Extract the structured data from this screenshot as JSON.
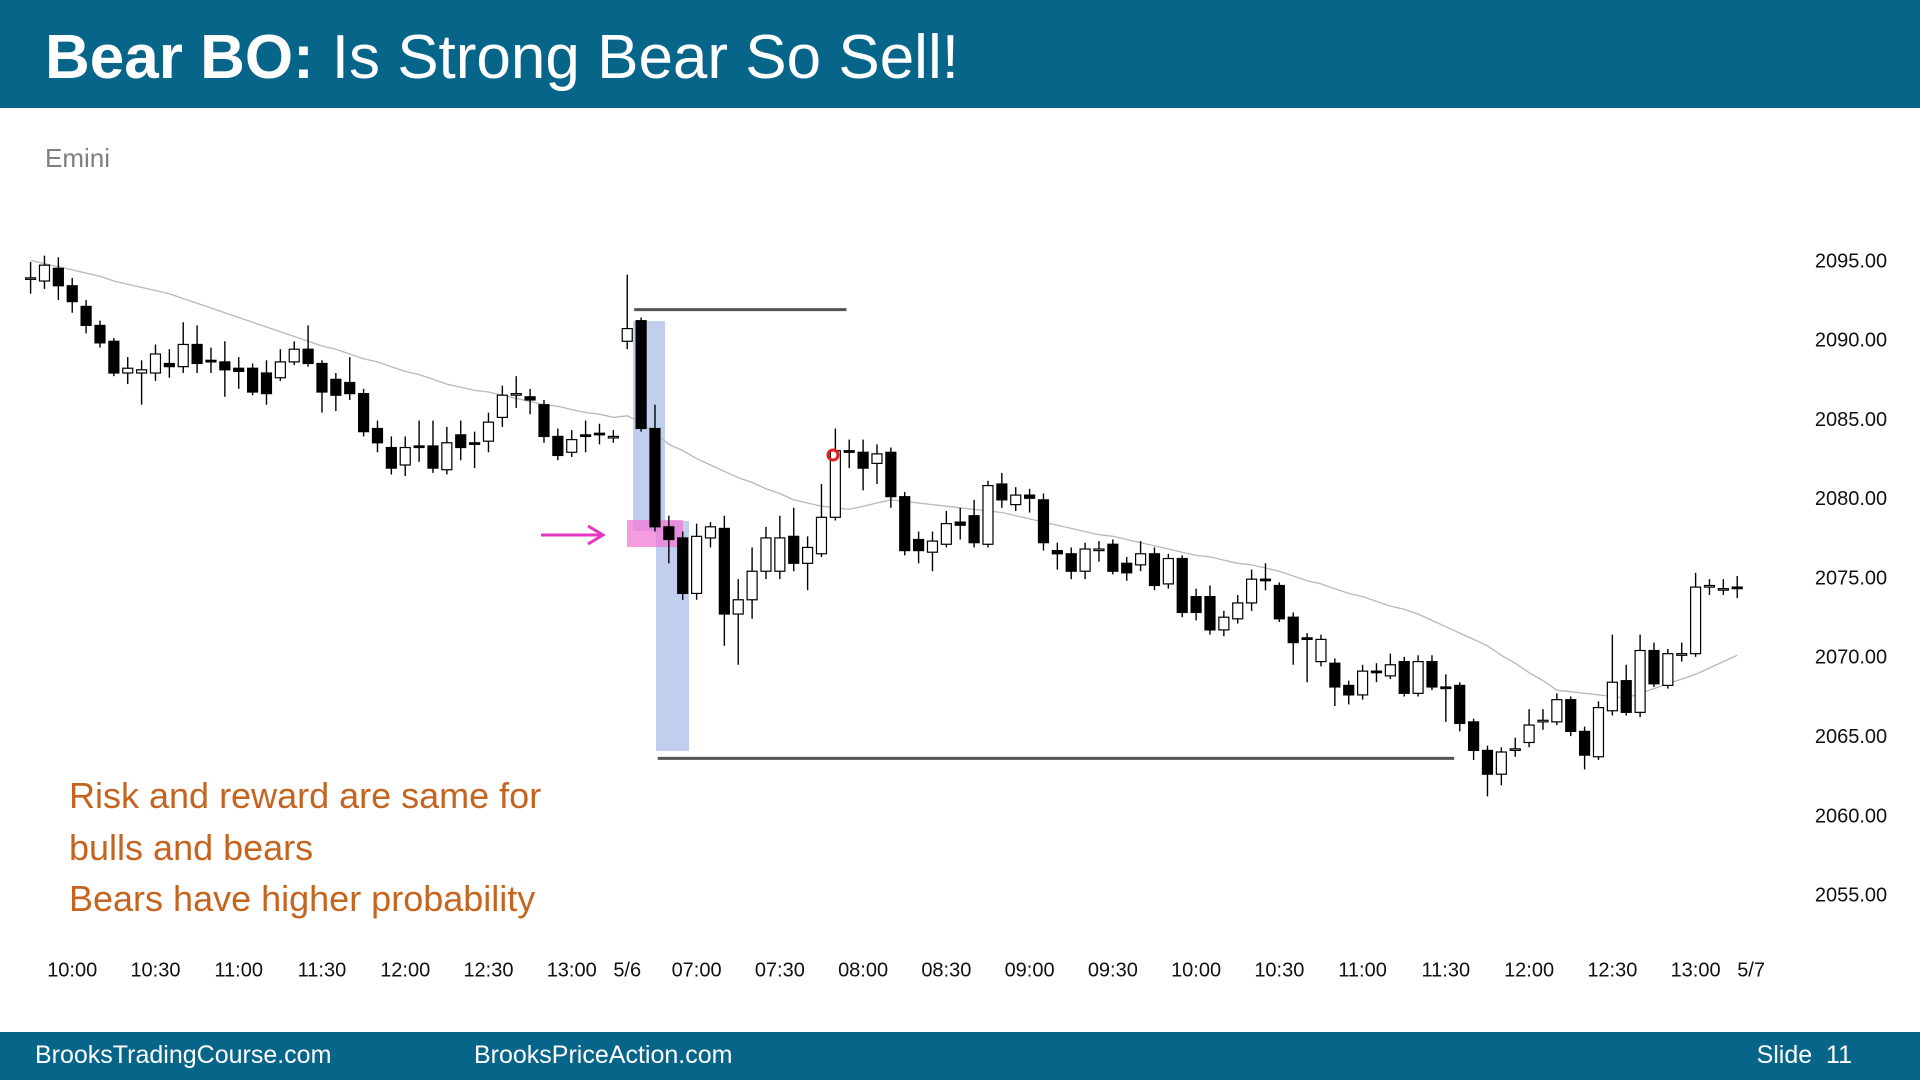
{
  "header": {
    "title_bold": "Bear BO:",
    "title_rest": "Is Strong Bear So Sell!"
  },
  "chart_data": {
    "type": "candlestick",
    "subtitle": "Emini",
    "categories": [
      null,
      null,
      null,
      "10:00",
      null,
      null,
      null,
      null,
      null,
      "10:30",
      null,
      null,
      null,
      null,
      null,
      "11:00",
      null,
      null,
      null,
      null,
      null,
      "11:30",
      null,
      null,
      null,
      null,
      null,
      "12:00",
      null,
      null,
      null,
      null,
      null,
      "12:30",
      null,
      null,
      null,
      null,
      null,
      "13:00",
      null,
      null,
      null,
      "5/6",
      null,
      null,
      null,
      null,
      "07:00",
      null,
      null,
      null,
      null,
      null,
      "07:30",
      null,
      null,
      null,
      null,
      null,
      "08:00",
      null,
      null,
      null,
      null,
      null,
      "08:30",
      null,
      null,
      null,
      null,
      null,
      "09:00",
      null,
      null,
      null,
      null,
      null,
      "09:30",
      null,
      null,
      null,
      null,
      null,
      "10:00",
      null,
      null,
      null,
      null,
      null,
      "10:30",
      null,
      null,
      null,
      null,
      null,
      "11:00",
      null,
      null,
      null,
      null,
      null,
      "11:30",
      null,
      null,
      null,
      null,
      null,
      "12:00",
      null,
      null,
      null,
      null,
      null,
      "12:30",
      null,
      null,
      null,
      null,
      null,
      "13:00",
      null,
      null,
      null,
      "5/7"
    ],
    "open": [
      2094,
      2093.8,
      2094.6,
      2093.5,
      2092.2,
      2091,
      2090,
      2088,
      2088,
      2088,
      2088.6,
      2088.4,
      2089.8,
      2088.8,
      2088.7,
      2088.3,
      2088.3,
      2088,
      2087.7,
      2088.7,
      2089.5,
      2088.6,
      2087.6,
      2087.4,
      2086.7,
      2084.5,
      2083.3,
      2082.2,
      2083.4,
      2083.4,
      2081.9,
      2084.1,
      2083.6,
      2083.7,
      2085.2,
      2086.6,
      2086.5,
      2086,
      2084,
      2083,
      2084.1,
      2084.2,
      2084,
      2090,
      2091.3,
      2084.5,
      2078.3,
      2077.6,
      2074.1,
      2077.6,
      2078.2,
      2072.8,
      2073.7,
      2075.5,
      2075.5,
      2077.7,
      2076,
      2076.6,
      2078.9,
      2083.1,
      2083,
      2082.3,
      2083,
      2080.2,
      2077.5,
      2076.7,
      2077.2,
      2078.6,
      2079,
      2077.2,
      2081,
      2079.7,
      2080.3,
      2080,
      2076.8,
      2076.6,
      2075.5,
      2076.8,
      2077.2,
      2076,
      2075.9,
      2076.6,
      2074.7,
      2076.3,
      2073.9,
      2073.9,
      2071.8,
      2072.5,
      2073.5,
      2075,
      2074.6,
      2072.6,
      2071.3,
      2069.8,
      2069.7,
      2068.3,
      2067.7,
      2069.2,
      2068.9,
      2069.8,
      2067.8,
      2069.8,
      2068.2,
      2068.3,
      2066,
      2064.2,
      2062.7,
      2064.2,
      2064.7,
      2066,
      2066,
      2067.4,
      2065.4,
      2063.8,
      2066.7,
      2068.6,
      2066.6,
      2070.5,
      2068.3,
      2070.2,
      2070.3,
      2074.5,
      2074.4,
      2074.5,
      null
    ],
    "high": [
      2095,
      2095.4,
      2095.3,
      2094,
      2092.6,
      2091.3,
      2090.2,
      2089,
      2088.8,
      2089.8,
      2089.5,
      2091.2,
      2091,
      2089.6,
      2090,
      2089,
      2088.6,
      2088.8,
      2089.5,
      2090,
      2091,
      2088.8,
      2088,
      2089,
      2087,
      2085,
      2084,
      2084,
      2085,
      2085,
      2084.6,
      2085,
      2084.3,
      2085.5,
      2087.2,
      2087.8,
      2087,
      2086.3,
      2084.5,
      2084.4,
      2085,
      2084.8,
      2084.4,
      2094.2,
      2091.5,
      2086,
      2079,
      2078,
      2078.5,
      2078.6,
      2079,
      2075,
      2077,
      2078.3,
      2079,
      2079.5,
      2077.7,
      2081,
      2084.5,
      2083.8,
      2083.8,
      2083.5,
      2083.3,
      2080.5,
      2078,
      2078,
      2079.3,
      2079.5,
      2080,
      2081.2,
      2081.7,
      2080.8,
      2080.7,
      2080.4,
      2077.3,
      2077,
      2077.3,
      2077.4,
      2077.5,
      2076.4,
      2077.4,
      2077,
      2076.6,
      2076.5,
      2074.4,
      2074.6,
      2073,
      2074,
      2075.6,
      2076,
      2074.8,
      2072.9,
      2071.6,
      2071.5,
      2070,
      2068.6,
      2069.6,
      2069.7,
      2070.3,
      2070.1,
      2070.2,
      2070.2,
      2069,
      2068.5,
      2066.2,
      2064.5,
      2064.4,
      2065,
      2066.8,
      2066.8,
      2067.8,
      2067.6,
      2065.7,
      2067.3,
      2071.5,
      2069.6,
      2071.5,
      2071,
      2070.6,
      2071,
      2075.4,
      2075,
      2075,
      2075.2,
      null
    ],
    "low": [
      2093,
      2093.3,
      2092.6,
      2091.8,
      2090.5,
      2089.6,
      2087.8,
      2087.3,
      2086,
      2087.5,
      2087.7,
      2088,
      2088,
      2088,
      2086.5,
      2087,
      2086.6,
      2086,
      2087.5,
      2088.5,
      2088.4,
      2085.5,
      2085.6,
      2086.3,
      2084,
      2083,
      2081.6,
      2081.5,
      2082.4,
      2081.7,
      2081.6,
      2082.5,
      2082,
      2083,
      2084.6,
      2085.8,
      2085.4,
      2083.6,
      2082.5,
      2082.7,
      2083,
      2083.5,
      2083.6,
      2089.5,
      2084.3,
      2078,
      2076,
      2073.7,
      2073.7,
      2077,
      2070.8,
      2069.6,
      2072.5,
      2075,
      2075,
      2075.5,
      2074.3,
      2076.4,
      2078.7,
      2082,
      2080.6,
      2081,
      2079.5,
      2076.5,
      2076,
      2075.5,
      2077,
      2077.5,
      2077,
      2077,
      2079.5,
      2079.3,
      2079.2,
      2076.8,
      2075.6,
      2075,
      2075,
      2076.1,
      2075.3,
      2074.9,
      2075.5,
      2074.3,
      2074.4,
      2072.6,
      2072.4,
      2071.5,
      2071.4,
      2072.2,
      2073,
      2074.3,
      2072.3,
      2069.6,
      2068.5,
      2069.5,
      2067,
      2067.1,
      2067.4,
      2068.5,
      2068.7,
      2067.6,
      2067.6,
      2068,
      2066,
      2065.4,
      2063.6,
      2061.3,
      2062,
      2063.8,
      2064.4,
      2065.5,
      2065.8,
      2065.1,
      2063,
      2063.6,
      2066.4,
      2066.4,
      2066.3,
      2068.2,
      2068.1,
      2069.8,
      2070.1,
      2074,
      2074,
      2073.8,
      null
    ],
    "close": [
      2094,
      2094.8,
      2093.5,
      2092.5,
      2091,
      2089.9,
      2088,
      2088.3,
      2088.2,
      2089.2,
      2088.4,
      2089.8,
      2088.6,
      2088.7,
      2088.2,
      2088.1,
      2086.8,
      2086.7,
      2088.7,
      2089.5,
      2088.6,
      2086.8,
      2086.6,
      2086.7,
      2084.3,
      2083.6,
      2082,
      2083.3,
      2083.3,
      2082,
      2083.6,
      2083.3,
      2083.5,
      2084.9,
      2086.6,
      2086.7,
      2086.3,
      2084,
      2082.8,
      2083.8,
      2084,
      2084.1,
      2084,
      2090.8,
      2084.5,
      2078.3,
      2077.5,
      2074.1,
      2077.7,
      2078.3,
      2072.8,
      2073.7,
      2075.5,
      2077.6,
      2077.6,
      2076,
      2077,
      2078.9,
      2083.1,
      2083,
      2082,
      2082.9,
      2080.2,
      2076.8,
      2076.8,
      2077.4,
      2078.5,
      2078.4,
      2077.3,
      2080.9,
      2080,
      2080.3,
      2080.1,
      2077.3,
      2076.6,
      2075.5,
      2076.9,
      2076.9,
      2075.5,
      2075.4,
      2076.6,
      2074.6,
      2076.3,
      2072.9,
      2072.9,
      2071.8,
      2072.6,
      2073.5,
      2075,
      2074.9,
      2072.5,
      2071,
      2071.2,
      2071.2,
      2068.2,
      2067.7,
      2069.2,
      2069.1,
      2069.6,
      2067.8,
      2069.8,
      2068.2,
      2068.1,
      2065.9,
      2064.2,
      2062.7,
      2064.1,
      2064.3,
      2065.8,
      2066.1,
      2067.4,
      2065.4,
      2063.9,
      2066.9,
      2068.5,
      2066.6,
      2070.5,
      2068.4,
      2070.3,
      2070.3,
      2074.5,
      2074.6,
      2074.4,
      2074.4,
      null
    ],
    "moving_average": [
      2095.1,
      2094.9,
      2094.7,
      2094.5,
      2094.3,
      2094.1,
      2093.8,
      2093.6,
      2093.4,
      2093.2,
      2093,
      2092.7,
      2092.4,
      2092.1,
      2091.8,
      2091.5,
      2091.2,
      2090.9,
      2090.6,
      2090.3,
      2090,
      2089.7,
      2089.5,
      2089.2,
      2088.9,
      2088.7,
      2088.4,
      2088.1,
      2087.9,
      2087.6,
      2087.3,
      2087.1,
      2086.9,
      2086.8,
      2086.6,
      2086.4,
      2086.2,
      2086,
      2085.9,
      2085.7,
      2085.5,
      2085.4,
      2085.2,
      2085.3,
      2084.9,
      2084.2,
      2083.5,
      2083.1,
      2082.6,
      2082.2,
      2081.8,
      2081.4,
      2081.1,
      2080.7,
      2080.4,
      2080,
      2079.8,
      2079.6,
      2079.5,
      2079.4,
      2079.6,
      2079.8,
      2080,
      2079.9,
      2079.8,
      2079.7,
      2079.6,
      2079.5,
      2079.4,
      2079.3,
      2079.2,
      2079,
      2078.8,
      2078.6,
      2078.4,
      2078.2,
      2078,
      2077.8,
      2077.7,
      2077.5,
      2077.3,
      2077.1,
      2076.9,
      2076.7,
      2076.5,
      2076.4,
      2076.2,
      2076,
      2075.9,
      2075.7,
      2075.5,
      2075.2,
      2074.9,
      2074.7,
      2074.4,
      2074.1,
      2073.9,
      2073.6,
      2073.3,
      2073.1,
      2072.8,
      2072.4,
      2072,
      2071.6,
      2071.2,
      2070.8,
      2070.2,
      2069.7,
      2069.1,
      2068.6,
      2068,
      2067.9,
      2067.8,
      2067.7,
      2067.6,
      2067.5,
      2067.8,
      2068.1,
      2068.4,
      2068.7,
      2069,
      2069.4,
      2069.8,
      2070.2,
      null
    ],
    "ylim": [
      2050,
      2100
    ],
    "yticks": [
      {
        "value": 2055,
        "label": "2055.00"
      },
      {
        "value": 2060,
        "label": "2060.00"
      },
      {
        "value": 2065,
        "label": "2065.00"
      },
      {
        "value": 2070,
        "label": "2070.00"
      },
      {
        "value": 2075,
        "label": "2075.00"
      },
      {
        "value": 2080,
        "label": "2080.00"
      },
      {
        "value": 2085,
        "label": "2085.00"
      },
      {
        "value": 2090,
        "label": "2090.00"
      },
      {
        "value": 2095,
        "label": "2095.00"
      }
    ],
    "levels": [
      {
        "value": 2092,
        "x": [
          43.5,
          58.8
        ]
      },
      {
        "value": 2063.7,
        "x": [
          45.2,
          102.6
        ]
      }
    ],
    "annotations": [
      "Risk and reward are same for",
      "bulls and bears",
      "Bears have higher probability"
    ]
  },
  "footer": {
    "left": "BrooksTradingCourse.com",
    "center": "BrooksPriceAction.com",
    "slide": "Slide  11"
  }
}
